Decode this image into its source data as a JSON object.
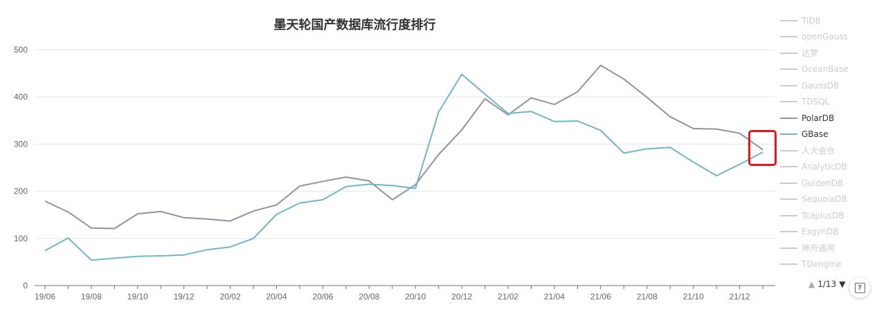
{
  "chart_data": {
    "type": "line",
    "title": "墨天轮国产数据库流行度排行",
    "x": [
      "19/06",
      "19/07",
      "19/08",
      "19/09",
      "19/10",
      "19/11",
      "19/12",
      "20/01",
      "20/02",
      "20/03",
      "20/04",
      "20/05",
      "20/06",
      "20/07",
      "20/08",
      "20/09",
      "20/10",
      "20/11",
      "20/12",
      "21/01",
      "21/02",
      "21/03",
      "21/04",
      "21/05",
      "21/06",
      "21/07",
      "21/08",
      "21/09",
      "21/10",
      "21/11",
      "21/12",
      "22/01"
    ],
    "x_tick_labels": [
      "19/06",
      "19/08",
      "19/10",
      "19/12",
      "20/02",
      "20/04",
      "20/06",
      "20/08",
      "20/10",
      "20/12",
      "21/02",
      "21/04",
      "21/06",
      "21/08",
      "21/10",
      "21/12"
    ],
    "y_ticks": [
      0,
      100,
      200,
      300,
      400,
      500
    ],
    "ylim": [
      0,
      500
    ],
    "series": [
      {
        "name": "PolarDB",
        "color": "#909399",
        "values": [
          179,
          156,
          122,
          121,
          152,
          157,
          144,
          141,
          137,
          158,
          171,
          211,
          221,
          230,
          222,
          182,
          214,
          278,
          330,
          396,
          362,
          398,
          384,
          411,
          467,
          438,
          399,
          358,
          333,
          332,
          323,
          288
        ]
      },
      {
        "name": "GBase",
        "color": "#6fb5c6",
        "values": [
          74,
          101,
          54,
          58,
          62,
          63,
          65,
          76,
          82,
          100,
          151,
          175,
          182,
          210,
          215,
          212,
          206,
          368,
          448,
          406,
          365,
          369,
          348,
          349,
          329,
          281,
          290,
          293,
          262,
          233,
          257,
          283
        ]
      }
    ],
    "grid": true
  },
  "legend": {
    "items": [
      "TiDB",
      "openGauss",
      "达梦",
      "OceanBase",
      "GaussDB",
      "TDSQL",
      "PolarDB",
      "GBase",
      "人大金仓",
      "AnalyticDB",
      "GoldenDB",
      "SequoiaDB",
      "TcaplusDB",
      "EsgynDB",
      "神舟通用",
      "TDengine"
    ],
    "active": [
      "PolarDB",
      "GBase"
    ],
    "inactive_color": "#cccccc"
  },
  "pager": {
    "label": "1/13",
    "up_icon": "triangle-up",
    "down_icon": "triangle-down"
  },
  "help_icon": "help-icon",
  "highlight_color": "#e8131d"
}
